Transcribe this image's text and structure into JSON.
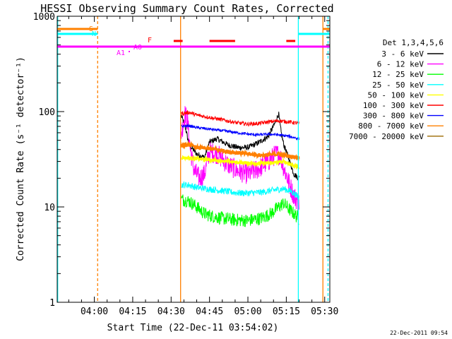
{
  "chart_data": {
    "type": "line",
    "title": "HESSI Observing Summary Count Rates, Corrected",
    "xlabel": "Start Time (22-Dec-11 03:54:02)",
    "ylabel": "Corrected Count Rate (s⁻¹ detector⁻¹)",
    "y_scale": "log",
    "ylim": [
      1,
      1000
    ],
    "xlim_minutes": [
      225.5,
      332.0
    ],
    "x_ticks": [
      {
        "label": "04:00",
        "value": 240
      },
      {
        "label": "04:15",
        "value": 255
      },
      {
        "label": "04:30",
        "value": 270
      },
      {
        "label": "04:45",
        "value": 285
      },
      {
        "label": "05:00",
        "value": 300
      },
      {
        "label": "05:15",
        "value": 315
      },
      {
        "label": "05:30",
        "value": 330
      }
    ],
    "y_ticks": [
      {
        "label": "1",
        "value": 1
      },
      {
        "label": "10",
        "value": 10
      },
      {
        "label": "100",
        "value": 100
      },
      {
        "label": "1000",
        "value": 1000
      }
    ],
    "legend_title": "Det 1,3,4,5,6",
    "legend_position": "right",
    "series": [
      {
        "name": "3 - 6 keV",
        "color": "#000000",
        "x": [
          274,
          275.5,
          277,
          280,
          283,
          285,
          288,
          292,
          296,
          300,
          304,
          308,
          310.5,
          312,
          313,
          314,
          315.5,
          318,
          320
        ],
        "y": [
          90,
          70,
          45,
          36,
          33,
          48,
          52,
          45,
          42,
          42,
          47,
          55,
          75,
          95,
          60,
          45,
          35,
          22,
          20
        ]
      },
      {
        "name": "6 - 12 keV",
        "color": "#ff00ff",
        "x": [
          274,
          275.5,
          276.5,
          277.5,
          279,
          281,
          283,
          285,
          288,
          292,
          296,
          300,
          304,
          308,
          311,
          312.5,
          314,
          316,
          318,
          320
        ],
        "y": [
          60,
          95,
          75,
          40,
          24,
          20,
          22,
          38,
          36,
          28,
          24,
          22,
          25,
          30,
          36,
          35,
          26,
          18,
          13,
          11
        ]
      },
      {
        "name": "12 - 25 keV",
        "color": "#00ff00",
        "x": [
          274,
          277,
          280,
          283,
          286,
          290,
          295,
          300,
          305,
          309,
          312,
          314,
          316,
          318,
          320
        ],
        "y": [
          12,
          11.5,
          10,
          8.5,
          8,
          7.6,
          7.3,
          7.2,
          7.6,
          8.5,
          10,
          11,
          9.5,
          8.5,
          7.5
        ]
      },
      {
        "name": "25 - 50 keV",
        "color": "#00ffff",
        "x": [
          274,
          277,
          280,
          284,
          288,
          292,
          296,
          300,
          305,
          310,
          314,
          317,
          320
        ],
        "y": [
          17,
          17,
          16,
          15.5,
          15,
          14.5,
          14,
          14,
          14.2,
          15,
          15.5,
          14.5,
          12.5
        ]
      },
      {
        "name": "50 - 100 keV",
        "color": "#ffff00",
        "x": [
          274,
          280,
          286,
          292,
          298,
          304,
          310,
          314,
          318,
          320
        ],
        "y": [
          33,
          32,
          31,
          30,
          29,
          28.5,
          29,
          30,
          27,
          26
        ]
      },
      {
        "name": "100 - 300 keV",
        "color": "#ff0000",
        "x": [
          274,
          277,
          280,
          284,
          288,
          292,
          296,
          300,
          304,
          308,
          312,
          316,
          320
        ],
        "y": [
          95,
          98,
          92,
          88,
          84,
          80,
          76,
          74,
          75,
          78,
          80,
          78,
          75
        ]
      },
      {
        "name": "300 - 800 keV",
        "color": "#0000ff",
        "x": [
          274,
          277,
          280,
          284,
          288,
          292,
          296,
          300,
          304,
          308,
          312,
          316,
          320
        ],
        "y": [
          70,
          71,
          68,
          66,
          64,
          62,
          60,
          58,
          57,
          58,
          57,
          55,
          52
        ]
      },
      {
        "name": "800 - 7000 keV",
        "color": "#ff8000",
        "x": [
          274,
          277,
          280,
          284,
          288,
          292,
          296,
          300,
          304,
          308,
          312,
          316,
          320
        ],
        "y": [
          44,
          45,
          42,
          41,
          40,
          38,
          37,
          36,
          35,
          35,
          36,
          34,
          33
        ]
      },
      {
        "name": "7000 - 20000 keV",
        "color": "#9c6a00",
        "x": [],
        "y": []
      }
    ],
    "annotations": [
      {
        "label": "S",
        "color": "#ff8000"
      },
      {
        "label": "N",
        "color": "#00ffff"
      },
      {
        "label": "F",
        "color": "#ff0000"
      },
      {
        "label": "A1",
        "color": "#ff00ff"
      },
      {
        "label": "A0",
        "color": "#ff00ff"
      }
    ],
    "timestamp": "22-Dec-2011 09:54"
  }
}
